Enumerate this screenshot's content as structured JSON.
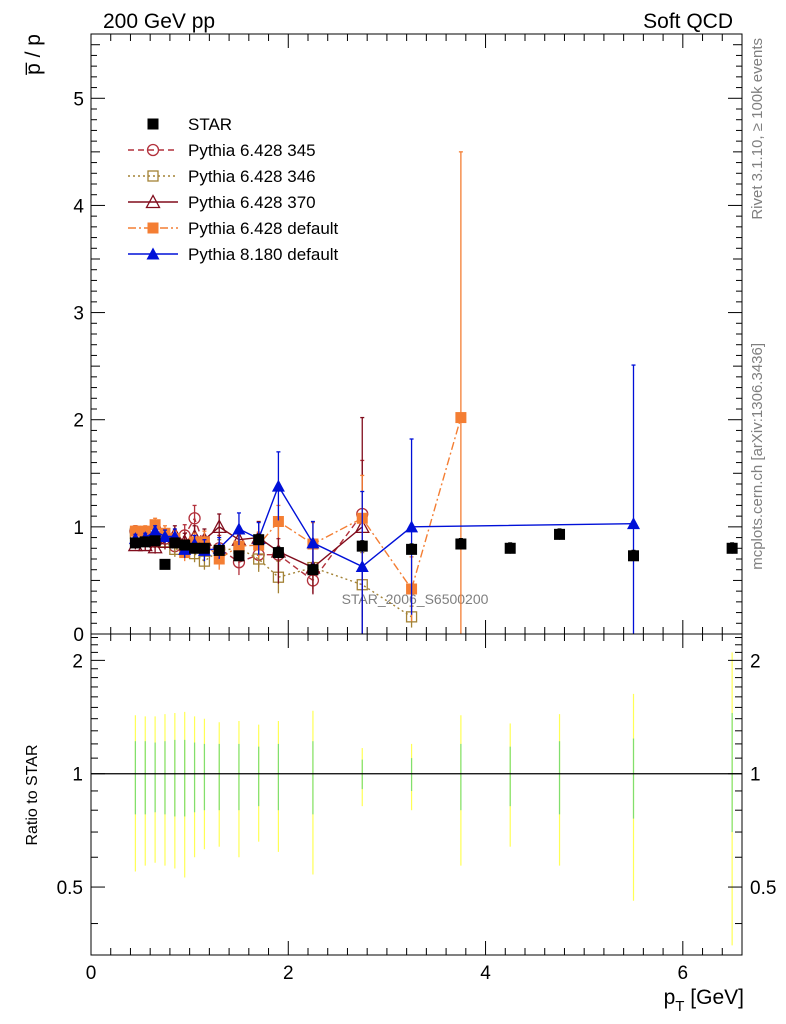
{
  "header": {
    "left": "200 GeV pp",
    "right": "Soft QCD"
  },
  "side_labels": {
    "rivet": "Rivet 3.1.10, ≥ 100k events",
    "mcplots": "mcplots.cern.ch [arXiv:1306.3436]"
  },
  "watermark": "STAR_2006_S6500200",
  "chart_data": [
    {
      "type": "line",
      "panel": "main",
      "ylabel": "p̅ / p",
      "ylim": [
        0,
        5.6
      ],
      "xlim": [
        0,
        6.6
      ],
      "yticks": [
        0,
        1,
        2,
        3,
        4,
        5
      ],
      "ytick_labels": [
        "0",
        "1",
        "2",
        "3",
        "4",
        "5"
      ],
      "legend_position": "top-left",
      "series": [
        {
          "name": "STAR",
          "color": "#000000",
          "marker": "square-filled",
          "line": "none",
          "x": [
            0.45,
            0.55,
            0.65,
            0.75,
            0.85,
            0.95,
            1.05,
            1.15,
            1.3,
            1.5,
            1.7,
            1.9,
            2.25,
            2.75,
            3.25,
            3.75,
            4.25,
            4.75,
            5.5,
            6.5
          ],
          "y": [
            0.85,
            0.86,
            0.87,
            0.65,
            0.85,
            0.83,
            0.8,
            0.8,
            0.78,
            0.73,
            0.88,
            0.76,
            0.6,
            0.82,
            0.79,
            0.84,
            0.8,
            0.93,
            0.73,
            0.8
          ],
          "err": [
            0.02,
            0.02,
            0.02,
            0.02,
            0.03,
            0.03,
            0.03,
            0.03,
            0.04,
            0.04,
            0.05,
            0.05,
            0.05,
            0.05,
            0.05,
            0.05,
            0.05,
            0.05,
            0.05,
            0.05
          ]
        },
        {
          "name": "Pythia 6.428 345",
          "color": "#b2303b",
          "marker": "circle-open",
          "line": "dashed",
          "x": [
            0.45,
            0.55,
            0.65,
            0.75,
            0.85,
            0.95,
            1.05,
            1.15,
            1.3,
            1.5,
            1.7,
            1.9,
            2.25,
            2.75
          ],
          "y": [
            0.96,
            0.93,
            0.98,
            0.89,
            0.82,
            0.92,
            1.08,
            0.82,
            0.8,
            0.67,
            0.74,
            0.74,
            0.5,
            1.12
          ],
          "err": [
            0.05,
            0.05,
            0.07,
            0.08,
            0.08,
            0.1,
            0.12,
            0.1,
            0.12,
            0.12,
            0.12,
            0.15,
            0.12,
            0.5
          ]
        },
        {
          "name": "Pythia 6.428 346",
          "color": "#a38235",
          "marker": "square-open",
          "line": "dotted",
          "x": [
            0.45,
            0.55,
            0.65,
            0.75,
            0.85,
            0.95,
            1.05,
            1.15,
            1.3,
            1.5,
            1.7,
            1.9,
            2.25,
            2.75,
            3.25
          ],
          "y": [
            0.94,
            0.91,
            0.86,
            0.86,
            0.79,
            0.8,
            0.75,
            0.68,
            0.78,
            0.8,
            0.7,
            0.53,
            0.62,
            0.46,
            0.16
          ],
          "err": [
            0.05,
            0.05,
            0.06,
            0.07,
            0.07,
            0.08,
            0.08,
            0.08,
            0.1,
            0.12,
            0.12,
            0.15,
            0.2,
            0.3,
            0.1
          ]
        },
        {
          "name": "Pythia 6.428 370",
          "color": "#800c1c",
          "marker": "triangle-open",
          "line": "solid",
          "x": [
            0.45,
            0.55,
            0.65,
            0.75,
            0.85,
            0.95,
            1.05,
            1.15,
            1.3,
            1.5,
            1.7,
            1.9,
            2.25,
            2.75
          ],
          "y": [
            0.83,
            0.83,
            0.81,
            0.86,
            0.93,
            0.86,
            0.91,
            0.88,
            1.0,
            0.88,
            0.9,
            0.77,
            0.62,
            1.0
          ],
          "err": [
            0.04,
            0.05,
            0.06,
            0.07,
            0.08,
            0.08,
            0.1,
            0.1,
            0.12,
            0.12,
            0.15,
            0.3,
            0.25,
            1.02
          ]
        },
        {
          "name": "Pythia 6.428 default",
          "color": "#f47e33",
          "marker": "square-filled",
          "line": "dashdot",
          "x": [
            0.45,
            0.55,
            0.65,
            0.75,
            0.85,
            0.95,
            1.05,
            1.15,
            1.3,
            1.5,
            1.7,
            1.9,
            2.25,
            2.75,
            3.25,
            3.75
          ],
          "y": [
            0.96,
            0.96,
            1.02,
            0.94,
            0.89,
            0.76,
            0.86,
            0.86,
            0.7,
            0.82,
            0.83,
            1.05,
            0.84,
            1.08,
            0.42,
            2.02
          ],
          "err": [
            0.05,
            0.05,
            0.06,
            0.07,
            0.07,
            0.08,
            0.08,
            0.1,
            0.1,
            0.12,
            0.12,
            0.15,
            0.2,
            0.4,
            0.3,
            2.48
          ]
        },
        {
          "name": "Pythia 8.180 default",
          "color": "#0010d8",
          "marker": "triangle-filled",
          "line": "solid",
          "x": [
            0.45,
            0.55,
            0.65,
            0.75,
            0.85,
            0.95,
            1.05,
            1.15,
            1.3,
            1.5,
            1.7,
            1.9,
            2.25,
            2.75,
            3.25,
            5.5
          ],
          "y": [
            0.89,
            0.9,
            0.96,
            0.91,
            0.91,
            0.79,
            0.84,
            0.78,
            0.8,
            0.98,
            0.89,
            1.38,
            0.85,
            0.63,
            1.0,
            1.03
          ],
          "err": [
            0.04,
            0.04,
            0.05,
            0.06,
            0.07,
            0.08,
            0.08,
            0.1,
            0.1,
            0.15,
            0.15,
            0.32,
            0.2,
            0.7,
            0.82,
            1.48
          ]
        }
      ]
    },
    {
      "type": "line",
      "panel": "ratio",
      "xlabel": "p_T [GeV]",
      "ylabel": "Ratio to STAR",
      "xlim": [
        0,
        6.6
      ],
      "ylim": [
        0.33,
        2.35
      ],
      "xticks": [
        0,
        2,
        4,
        6
      ],
      "xtick_labels": [
        "0",
        "2",
        "4",
        "6"
      ],
      "yticks": [
        0.5,
        1,
        2
      ],
      "ytick_labels": [
        "0.5",
        "1",
        "2"
      ],
      "log_y": true,
      "reference": 1,
      "uncertainty_bands": {
        "x": [
          0.45,
          0.55,
          0.65,
          0.75,
          0.85,
          0.95,
          1.05,
          1.15,
          1.3,
          1.5,
          1.7,
          1.9,
          2.25,
          2.75,
          3.25,
          3.75,
          4.25,
          4.75,
          5.5,
          6.5
        ],
        "outer_low": [
          0.55,
          0.57,
          0.58,
          0.57,
          0.56,
          0.53,
          0.6,
          0.63,
          0.64,
          0.6,
          0.66,
          0.62,
          0.54,
          0.82,
          0.8,
          0.57,
          0.64,
          0.57,
          0.46,
          0.35
        ],
        "outer_high": [
          1.43,
          1.42,
          1.42,
          1.44,
          1.45,
          1.46,
          1.42,
          1.4,
          1.37,
          1.38,
          1.35,
          1.38,
          1.47,
          1.17,
          1.2,
          1.43,
          1.36,
          1.44,
          1.63,
          2.1
        ],
        "inner_low": [
          0.78,
          0.78,
          0.79,
          0.78,
          0.77,
          0.77,
          0.79,
          0.8,
          0.8,
          0.8,
          0.82,
          0.8,
          0.78,
          0.91,
          0.9,
          0.8,
          0.82,
          0.78,
          0.76,
          0.7
        ],
        "inner_high": [
          1.22,
          1.22,
          1.21,
          1.22,
          1.23,
          1.23,
          1.21,
          1.2,
          1.2,
          1.2,
          1.18,
          1.2,
          1.22,
          1.09,
          1.1,
          1.2,
          1.18,
          1.22,
          1.24,
          1.45
        ],
        "outer_color": "#ffff55",
        "inner_color": "#7fdf70"
      }
    }
  ]
}
